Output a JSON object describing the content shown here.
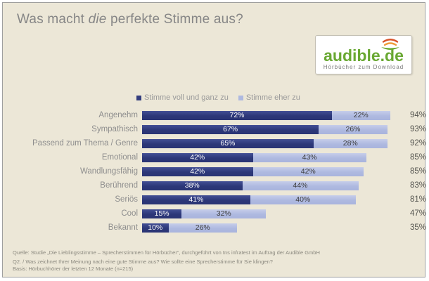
{
  "page": {
    "title_prefix": "Was macht ",
    "title_italic": "die",
    "title_suffix": " perfekte Stimme aus?"
  },
  "logo": {
    "name": "audible.de",
    "tagline": "Hörbücher zum Download",
    "brand_green": "#69a832",
    "icon": "audible-soundwave-icon",
    "icon_orange": "#f09c3a",
    "icon_red": "#d9542b"
  },
  "legend": {
    "items": [
      {
        "label": "Stimme voll und ganz zu",
        "color": "#333d7e"
      },
      {
        "label": "Stimme eher zu",
        "color": "#aeb9e0"
      }
    ]
  },
  "chart_data": {
    "type": "bar",
    "orientation": "horizontal",
    "stacked": true,
    "categories": [
      "Angenehm",
      "Sympathisch",
      "Passend zum Thema / Genre",
      "Emotional",
      "Wandlungsfähig",
      "Berührend",
      "Seriös",
      "Cool",
      "Bekannt"
    ],
    "series": [
      {
        "name": "Stimme voll und ganz zu",
        "color": "#333d7e",
        "values": [
          72,
          67,
          65,
          42,
          42,
          38,
          41,
          15,
          10
        ]
      },
      {
        "name": "Stimme eher zu",
        "color": "#aeb9e0",
        "values": [
          22,
          26,
          28,
          43,
          42,
          44,
          40,
          32,
          26
        ]
      }
    ],
    "totals": [
      94,
      93,
      92,
      85,
      85,
      83,
      81,
      47,
      35
    ],
    "value_suffix": "%",
    "xlim": [
      0,
      100
    ],
    "grid": false,
    "legend_position": "top"
  },
  "footer": {
    "line1": "Quelle: Studie „Die Lieblingsstimme – Sprecherstimmen für Hörbücher“, durchgeführt von tns infratest im Auftrag der Audible GmbH",
    "line2": "Q2. / Was zeichnet Ihrer Meinung nach eine gute Stimme aus? Wie sollte eine Sprecherstimme für Sie klingen?",
    "line3": "Basis: Hörbuchhörer der letzten 12 Monate (n=215)"
  }
}
